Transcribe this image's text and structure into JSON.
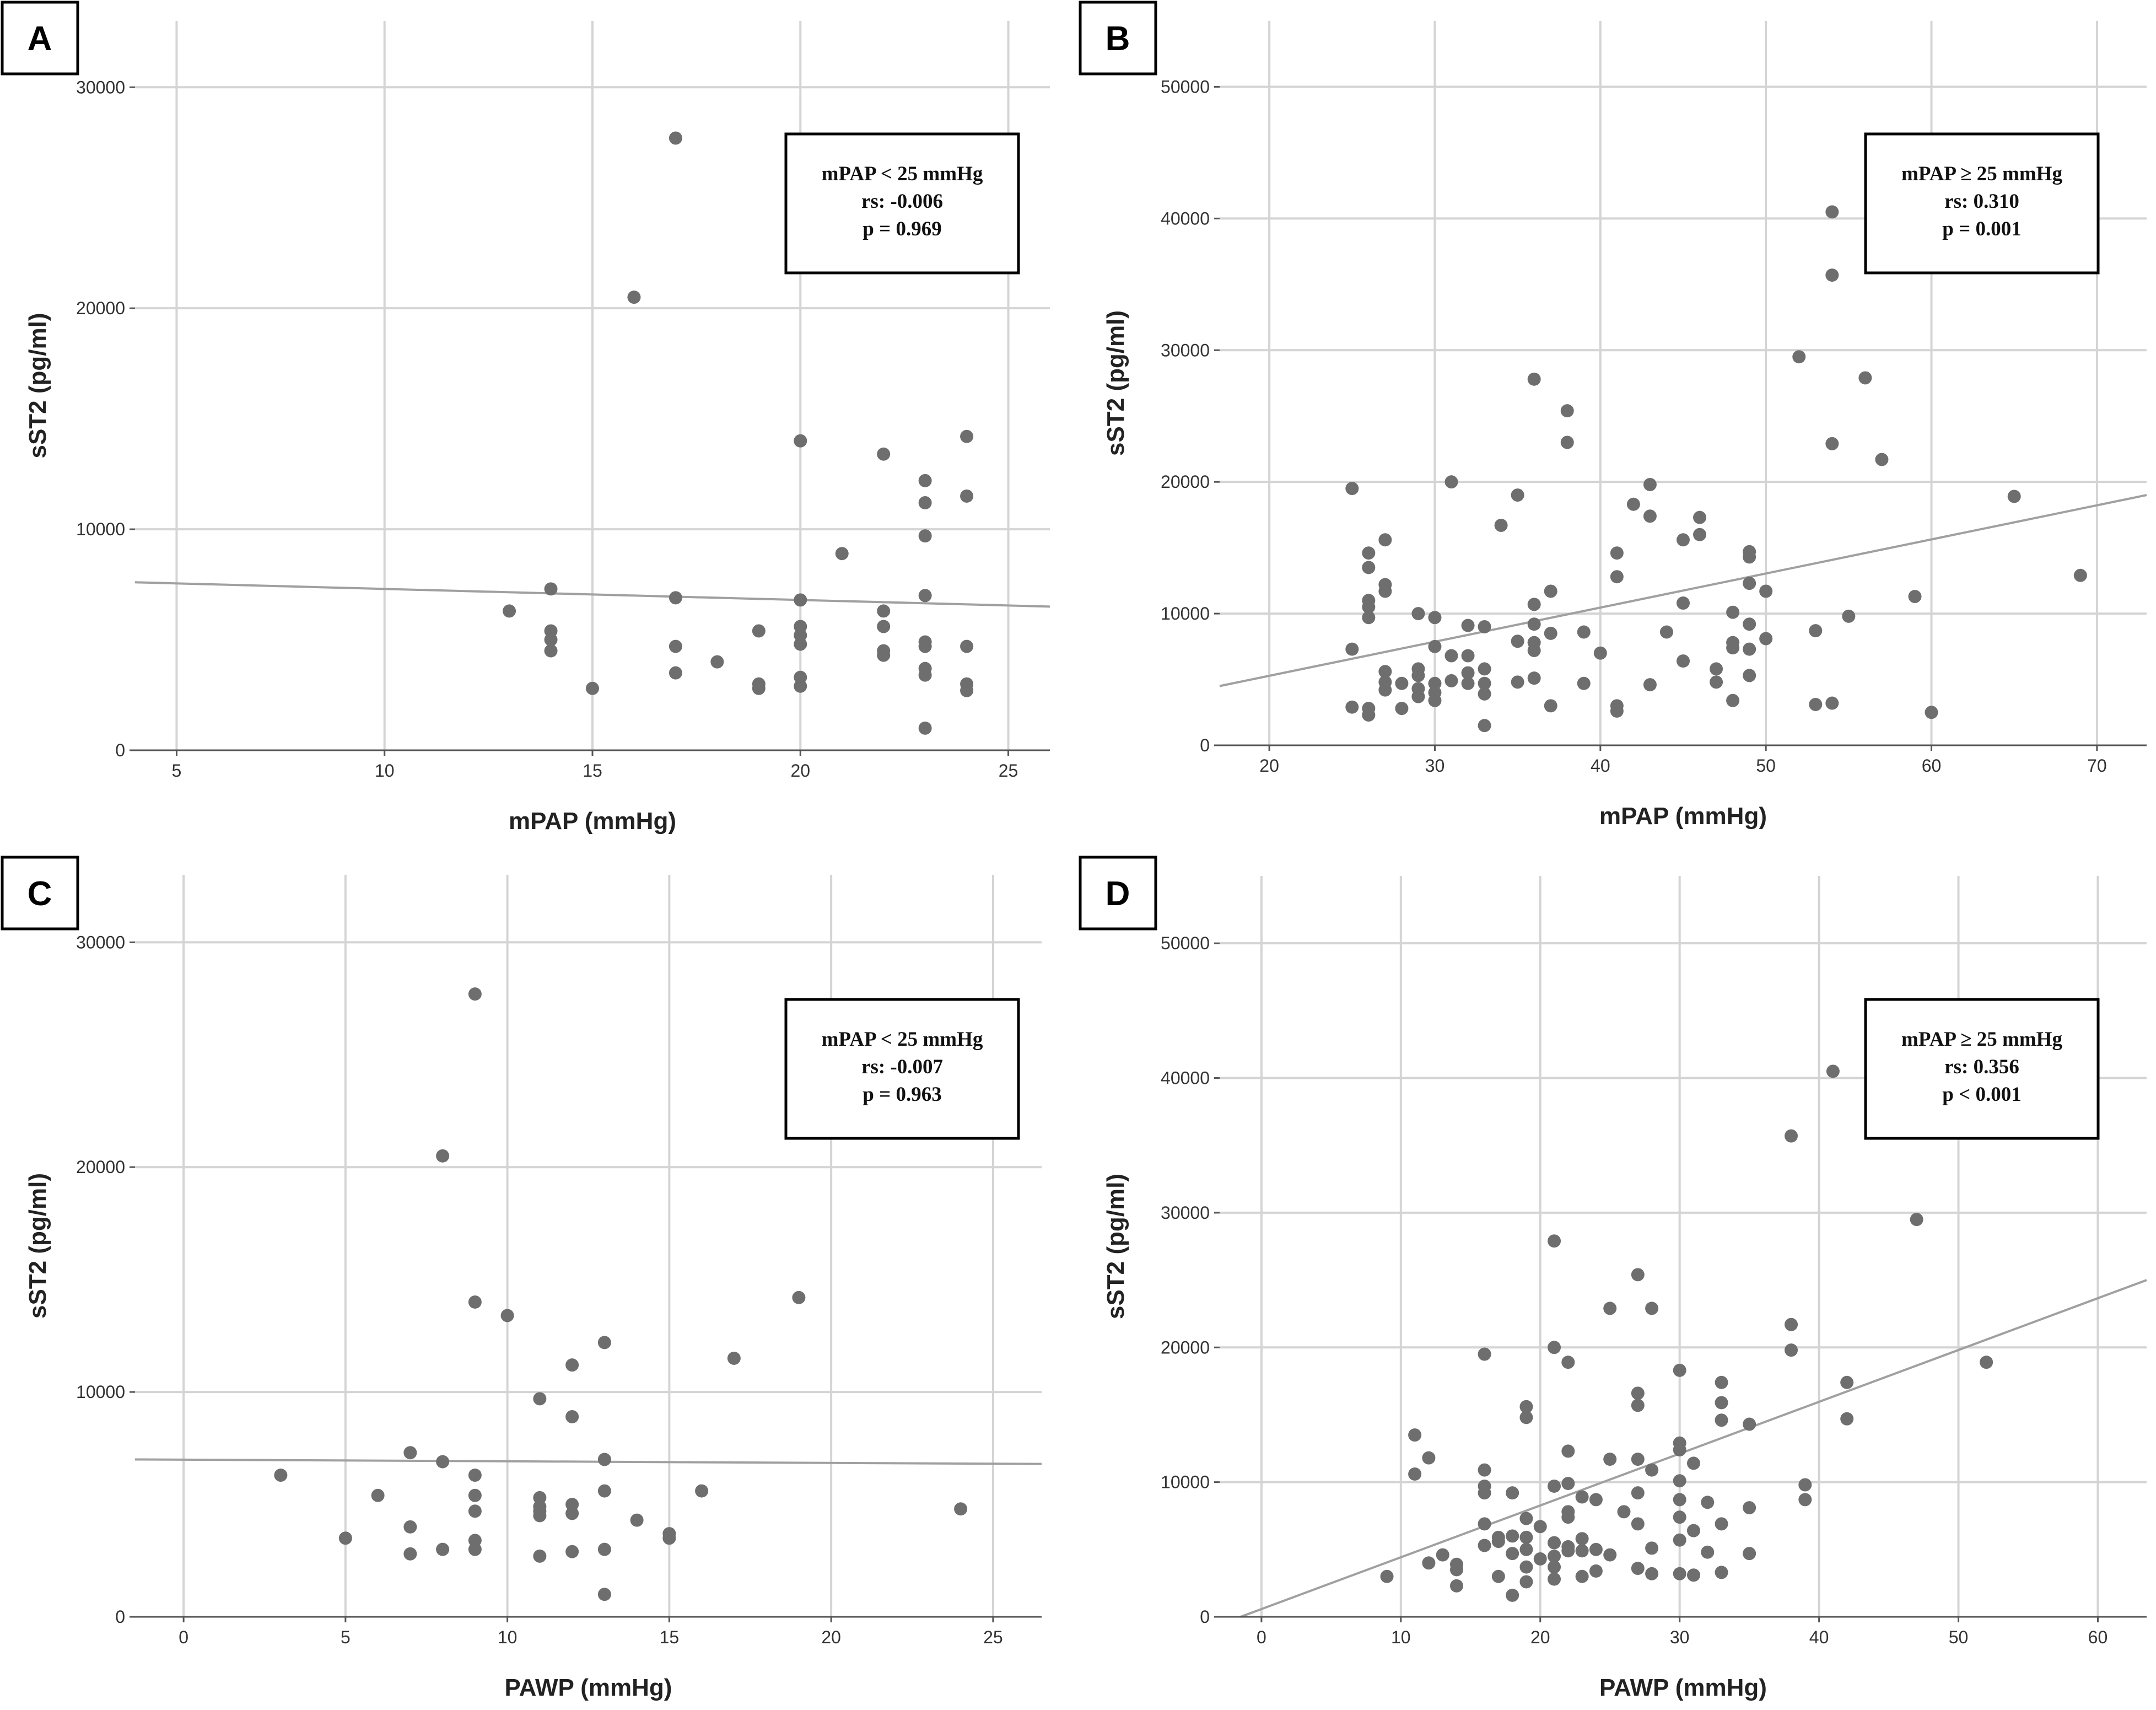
{
  "colors": {
    "points": "#6e6e6e",
    "fit_line": "#a0a0a0",
    "grid": "#d4d4d4"
  },
  "chart_data": [
    {
      "panel": "A",
      "type": "scatter",
      "xlabel": "mPAP (mmHg)",
      "ylabel": "sST2 (pg/ml)",
      "xlim": [
        4,
        26
      ],
      "ylim": [
        0,
        33000
      ],
      "xticks": [
        5,
        10,
        15,
        20,
        25
      ],
      "yticks": [
        0,
        10000,
        20000,
        30000
      ],
      "fit_line": {
        "x": [
          4,
          26
        ],
        "y": [
          7600,
          6500
        ]
      },
      "annotation": [
        "mPAP < 25 mmHg",
        "rs: -0.006",
        "p = 0.969"
      ],
      "points": [
        [
          13,
          6300
        ],
        [
          14,
          7300
        ],
        [
          14,
          5400
        ],
        [
          14,
          5000
        ],
        [
          14,
          4500
        ],
        [
          15,
          2800
        ],
        [
          16,
          20500
        ],
        [
          17,
          27700
        ],
        [
          17,
          6900
        ],
        [
          17,
          4700
        ],
        [
          17,
          3500
        ],
        [
          18,
          4000
        ],
        [
          19,
          5400
        ],
        [
          19,
          3000
        ],
        [
          19,
          2800
        ],
        [
          20,
          14000
        ],
        [
          20,
          6800
        ],
        [
          20,
          5600
        ],
        [
          20,
          5200
        ],
        [
          20,
          4800
        ],
        [
          20,
          3300
        ],
        [
          20,
          2900
        ],
        [
          21,
          8900
        ],
        [
          22,
          13400
        ],
        [
          22,
          6300
        ],
        [
          22,
          5600
        ],
        [
          22,
          4500
        ],
        [
          22,
          4300
        ],
        [
          23,
          12200
        ],
        [
          23,
          11200
        ],
        [
          23,
          9700
        ],
        [
          23,
          7000
        ],
        [
          23,
          4900
        ],
        [
          23,
          4700
        ],
        [
          23,
          3700
        ],
        [
          23,
          3400
        ],
        [
          23,
          1000
        ],
        [
          24,
          14200
        ],
        [
          24,
          11500
        ],
        [
          24,
          4700
        ],
        [
          24,
          3000
        ],
        [
          24,
          2700
        ]
      ]
    },
    {
      "panel": "B",
      "type": "scatter",
      "xlabel": "mPAP (mmHg)",
      "ylabel": "sST2 (pg/ml)",
      "xlim": [
        17,
        73
      ],
      "ylim": [
        0,
        55000
      ],
      "xticks": [
        20,
        30,
        40,
        50,
        60,
        70
      ],
      "yticks": [
        0,
        10000,
        20000,
        30000,
        40000,
        50000
      ],
      "fit_line": {
        "x": [
          17,
          73
        ],
        "y": [
          4500,
          19000
        ]
      },
      "annotation": [
        "mPAP ≥ 25 mmHg",
        "rs: 0.310",
        "p = 0.001"
      ],
      "points": [
        [
          25,
          19500
        ],
        [
          25,
          7300
        ],
        [
          25,
          2900
        ],
        [
          26,
          14600
        ],
        [
          26,
          13500
        ],
        [
          26,
          11000
        ],
        [
          26,
          10500
        ],
        [
          26,
          9700
        ],
        [
          26,
          2800
        ],
        [
          26,
          2300
        ],
        [
          27,
          15600
        ],
        [
          27,
          12200
        ],
        [
          27,
          11700
        ],
        [
          27,
          5600
        ],
        [
          27,
          4800
        ],
        [
          27,
          4200
        ],
        [
          28,
          4700
        ],
        [
          28,
          2800
        ],
        [
          29,
          10000
        ],
        [
          29,
          5800
        ],
        [
          29,
          5300
        ],
        [
          29,
          4300
        ],
        [
          29,
          3700
        ],
        [
          30,
          9700
        ],
        [
          30,
          7500
        ],
        [
          30,
          4700
        ],
        [
          30,
          4000
        ],
        [
          30,
          3400
        ],
        [
          31,
          20000
        ],
        [
          31,
          6800
        ],
        [
          31,
          4900
        ],
        [
          32,
          9100
        ],
        [
          32,
          6800
        ],
        [
          32,
          5500
        ],
        [
          32,
          4700
        ],
        [
          33,
          9000
        ],
        [
          33,
          5800
        ],
        [
          33,
          4700
        ],
        [
          33,
          3900
        ],
        [
          33,
          1500
        ],
        [
          34,
          16700
        ],
        [
          35,
          19000
        ],
        [
          35,
          7900
        ],
        [
          35,
          4800
        ],
        [
          36,
          27800
        ],
        [
          36,
          10700
        ],
        [
          36,
          9200
        ],
        [
          36,
          7800
        ],
        [
          36,
          7200
        ],
        [
          36,
          5100
        ],
        [
          37,
          11700
        ],
        [
          37,
          8500
        ],
        [
          37,
          3000
        ],
        [
          38,
          25400
        ],
        [
          38,
          23000
        ],
        [
          39,
          8600
        ],
        [
          39,
          4700
        ],
        [
          40,
          7000
        ],
        [
          41,
          14600
        ],
        [
          41,
          12800
        ],
        [
          41,
          3000
        ],
        [
          41,
          2600
        ],
        [
          42,
          18300
        ],
        [
          43,
          19800
        ],
        [
          43,
          17400
        ],
        [
          43,
          4600
        ],
        [
          44,
          8600
        ],
        [
          45,
          15600
        ],
        [
          45,
          10800
        ],
        [
          45,
          6400
        ],
        [
          46,
          17300
        ],
        [
          46,
          16000
        ],
        [
          47,
          5800
        ],
        [
          47,
          4800
        ],
        [
          48,
          10100
        ],
        [
          48,
          7800
        ],
        [
          48,
          7400
        ],
        [
          48,
          3400
        ],
        [
          49,
          14700
        ],
        [
          49,
          14300
        ],
        [
          49,
          12300
        ],
        [
          49,
          9200
        ],
        [
          49,
          7300
        ],
        [
          49,
          5300
        ],
        [
          50,
          11700
        ],
        [
          50,
          8100
        ],
        [
          52,
          29500
        ],
        [
          53,
          8700
        ],
        [
          53,
          3100
        ],
        [
          54,
          40500
        ],
        [
          54,
          35700
        ],
        [
          54,
          22900
        ],
        [
          54,
          3200
        ],
        [
          55,
          9800
        ],
        [
          56,
          27900
        ],
        [
          57,
          21700
        ],
        [
          59,
          11300
        ],
        [
          60,
          2500
        ],
        [
          65,
          18900
        ],
        [
          69,
          12900
        ]
      ]
    },
    {
      "panel": "C",
      "type": "scatter",
      "xlabel": "PAWP (mmHg)",
      "ylabel": "sST2 (pg/ml)",
      "xlim": [
        -1.5,
        26.5
      ],
      "ylim": [
        0,
        33000
      ],
      "xticks": [
        0,
        5,
        10,
        15,
        20,
        25
      ],
      "yticks": [
        0,
        10000,
        20000,
        30000
      ],
      "fit_line": {
        "x": [
          -1.5,
          26.5
        ],
        "y": [
          7000,
          6800
        ]
      },
      "annotation": [
        "mPAP < 25 mmHg",
        "rs: -0.007",
        "p = 0.963"
      ],
      "points": [
        [
          3,
          6300
        ],
        [
          5,
          3500
        ],
        [
          6,
          5400
        ],
        [
          7,
          7300
        ],
        [
          7,
          4000
        ],
        [
          7,
          2800
        ],
        [
          8,
          20500
        ],
        [
          8,
          6900
        ],
        [
          8,
          3000
        ],
        [
          9,
          27700
        ],
        [
          9,
          14000
        ],
        [
          9,
          6300
        ],
        [
          9,
          5400
        ],
        [
          9,
          4700
        ],
        [
          9,
          3400
        ],
        [
          9,
          3000
        ],
        [
          10,
          13400
        ],
        [
          11,
          9700
        ],
        [
          11,
          5300
        ],
        [
          11,
          4900
        ],
        [
          11,
          4700
        ],
        [
          11,
          4500
        ],
        [
          11,
          2700
        ],
        [
          12,
          11200
        ],
        [
          12,
          8900
        ],
        [
          12,
          5000
        ],
        [
          12,
          4600
        ],
        [
          12,
          2900
        ],
        [
          13,
          12200
        ],
        [
          13,
          7000
        ],
        [
          13,
          5600
        ],
        [
          13,
          3000
        ],
        [
          13,
          1000
        ],
        [
          14,
          4300
        ],
        [
          15,
          3700
        ],
        [
          15,
          3500
        ],
        [
          16,
          5600
        ],
        [
          17,
          11500
        ],
        [
          19,
          14200
        ],
        [
          24,
          4800
        ]
      ]
    },
    {
      "panel": "D",
      "type": "scatter",
      "xlabel": "PAWP (mmHg)",
      "ylabel": "sST2 (pg/ml)",
      "xlim": [
        -3,
        63.5
      ],
      "ylim": [
        0,
        55000
      ],
      "xticks": [
        0,
        10,
        20,
        30,
        40,
        50,
        60
      ],
      "yticks": [
        0,
        10000,
        20000,
        30000,
        40000,
        50000
      ],
      "fit_line": {
        "x": [
          -1.5,
          63.5
        ],
        "y": [
          0,
          25000
        ]
      },
      "annotation": [
        "mPAP ≥ 25 mmHg",
        "rs: 0.356",
        "p < 0.001"
      ],
      "points": [
        [
          9,
          3000
        ],
        [
          11,
          13500
        ],
        [
          11,
          10600
        ],
        [
          12,
          11800
        ],
        [
          12,
          4000
        ],
        [
          13,
          4600
        ],
        [
          14,
          3900
        ],
        [
          14,
          3500
        ],
        [
          14,
          2300
        ],
        [
          16,
          19500
        ],
        [
          16,
          10900
        ],
        [
          16,
          9700
        ],
        [
          16,
          9200
        ],
        [
          16,
          6900
        ],
        [
          16,
          5300
        ],
        [
          17,
          5900
        ],
        [
          17,
          5600
        ],
        [
          17,
          3000
        ],
        [
          18,
          9200
        ],
        [
          18,
          6000
        ],
        [
          18,
          4700
        ],
        [
          18,
          1600
        ],
        [
          19,
          15600
        ],
        [
          19,
          14800
        ],
        [
          19,
          7300
        ],
        [
          19,
          5900
        ],
        [
          19,
          5000
        ],
        [
          19,
          3700
        ],
        [
          19,
          2600
        ],
        [
          20,
          6700
        ],
        [
          20,
          4300
        ],
        [
          21,
          27900
        ],
        [
          21,
          20000
        ],
        [
          21,
          9700
        ],
        [
          21,
          5500
        ],
        [
          21,
          4500
        ],
        [
          21,
          3700
        ],
        [
          21,
          2800
        ],
        [
          22,
          18900
        ],
        [
          22,
          12300
        ],
        [
          22,
          9900
        ],
        [
          22,
          7800
        ],
        [
          22,
          7400
        ],
        [
          22,
          5200
        ],
        [
          22,
          4900
        ],
        [
          23,
          8900
        ],
        [
          23,
          5800
        ],
        [
          23,
          4900
        ],
        [
          23,
          3000
        ],
        [
          24,
          8700
        ],
        [
          24,
          5000
        ],
        [
          24,
          3400
        ],
        [
          25,
          22900
        ],
        [
          25,
          11700
        ],
        [
          25,
          4600
        ],
        [
          26,
          7800
        ],
        [
          27,
          25400
        ],
        [
          27,
          16600
        ],
        [
          27,
          15700
        ],
        [
          27,
          11700
        ],
        [
          27,
          9200
        ],
        [
          27,
          6900
        ],
        [
          27,
          3600
        ],
        [
          28,
          22900
        ],
        [
          28,
          10900
        ],
        [
          28,
          5100
        ],
        [
          28,
          3200
        ],
        [
          30,
          18300
        ],
        [
          30,
          12900
        ],
        [
          30,
          12400
        ],
        [
          30,
          10100
        ],
        [
          30,
          8700
        ],
        [
          30,
          7400
        ],
        [
          30,
          5700
        ],
        [
          30,
          3200
        ],
        [
          31,
          11400
        ],
        [
          31,
          6400
        ],
        [
          31,
          3100
        ],
        [
          32,
          8500
        ],
        [
          32,
          4800
        ],
        [
          33,
          17400
        ],
        [
          33,
          15900
        ],
        [
          33,
          14600
        ],
        [
          33,
          6900
        ],
        [
          33,
          3300
        ],
        [
          35,
          14300
        ],
        [
          35,
          8100
        ],
        [
          35,
          4700
        ],
        [
          38,
          35700
        ],
        [
          38,
          21700
        ],
        [
          38,
          19800
        ],
        [
          39,
          9800
        ],
        [
          39,
          8700
        ],
        [
          41,
          40500
        ],
        [
          42,
          17400
        ],
        [
          42,
          14700
        ],
        [
          47,
          29500
        ],
        [
          52,
          18900
        ]
      ]
    }
  ]
}
